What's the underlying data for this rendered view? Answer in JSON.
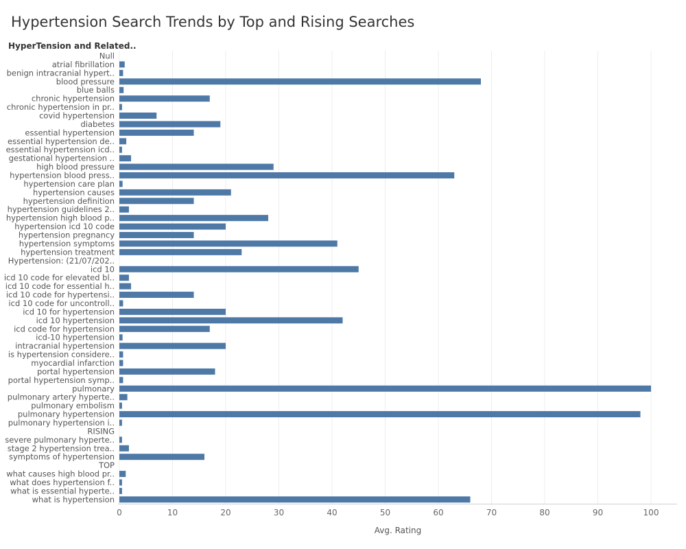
{
  "chart_data": {
    "type": "bar",
    "orientation": "horizontal",
    "title": "Hypertension Search Trends by Top and Rising Searches",
    "category_header": "HyperTension and Related..",
    "xlabel": "Avg. Rating",
    "xlim": [
      0,
      105
    ],
    "xticks": [
      0,
      10,
      20,
      30,
      40,
      50,
      60,
      70,
      80,
      90,
      100
    ],
    "grid": "vertical",
    "bar_color": "#4e79a7",
    "categories": [
      "Null",
      "atrial fibrillation",
      "benign intracranial hypert..",
      "blood pressure",
      "blue balls",
      "chronic hypertension",
      "chronic hypertension in pr..",
      "covid hypertension",
      "diabetes",
      "essential hypertension",
      "essential hypertension de..",
      "essential hypertension icd..",
      "gestational hypertension ..",
      "high blood pressure",
      "hypertension blood press..",
      "hypertension care plan",
      "hypertension causes",
      "hypertension definition",
      "hypertension guidelines 2..",
      "hypertension high blood p..",
      "hypertension icd 10 code",
      "hypertension pregnancy",
      "hypertension symptoms",
      "hypertension treatment",
      "Hypertension: (21/07/202..",
      "icd 10",
      "icd 10 code for elevated bl..",
      "icd 10 code for essential h..",
      "icd 10 code for hypertensi..",
      "icd 10 code for uncontroll..",
      "icd 10 for hypertension",
      "icd 10 hypertension",
      "icd code for hypertension",
      "icd-10 hypertension",
      "intracranial hypertension",
      "is hypertension considere..",
      "myocardial infarction",
      "portal hypertension",
      "portal hypertension symp..",
      "pulmonary",
      "pulmonary artery hyperte..",
      "pulmonary embolism",
      "pulmonary hypertension",
      "pulmonary hypertension i..",
      "RISING",
      "severe pulmonary hyperte..",
      "stage 2 hypertension trea..",
      "symptoms of hypertension",
      "TOP",
      "what causes high blood pr..",
      "what does hypertension f..",
      "what is essential hyperte..",
      "what is hypertension"
    ],
    "values": [
      null,
      1,
      0.7,
      68,
      0.8,
      17,
      0.5,
      7,
      19,
      14,
      1.3,
      0.5,
      2.2,
      29,
      63,
      0.6,
      21,
      14,
      1.8,
      28,
      20,
      14,
      41,
      23,
      null,
      45,
      1.8,
      2.2,
      14,
      0.7,
      20,
      42,
      17,
      0.6,
      20,
      0.7,
      0.7,
      18,
      0.7,
      100,
      1.5,
      0.5,
      98,
      0.5,
      null,
      0.5,
      1.8,
      16,
      null,
      1.2,
      0.5,
      0.5,
      66
    ]
  }
}
